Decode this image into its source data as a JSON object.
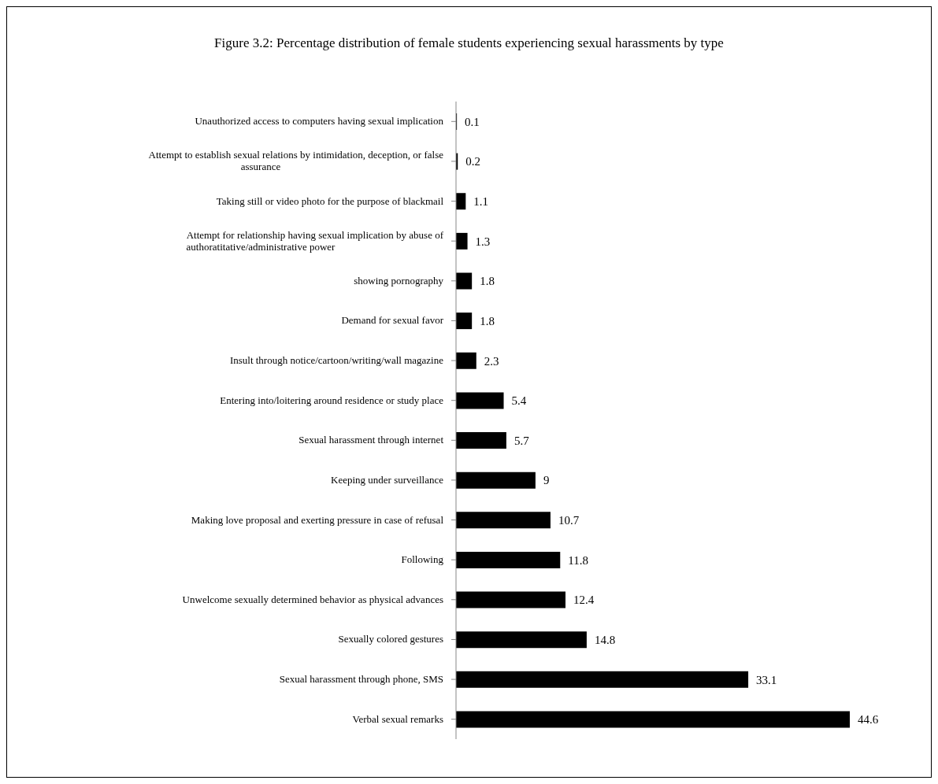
{
  "chart_data": {
    "type": "bar",
    "orientation": "horizontal",
    "title": "Figure 3.2: Percentage distribution of female students  experiencing sexual harassments by type",
    "categories": [
      "Unauthorized access to computers having sexual implication",
      "Attempt to establish sexual relations by intimidation, deception, or false assurance",
      "Taking still or video photo for the purpose of blackmail",
      "Attempt for relationship having sexual implication by abuse of authoratitative/administrative power",
      "showing pornography",
      "Demand for sexual favor",
      "Insult through notice/cartoon/writing/wall magazine",
      "Entering into/loitering around residence or study place",
      "Sexual harassment through internet",
      "Keeping under surveillance",
      "Making love proposal and exerting pressure in case of refusal",
      "Following",
      "Unwelcome sexually determined behavior as physical advances",
      "Sexually colored gestures",
      "Sexual harassment through phone, SMS",
      "Verbal sexual remarks"
    ],
    "values": [
      0.1,
      0.2,
      1.1,
      1.3,
      1.8,
      1.8,
      2.3,
      5.4,
      5.7,
      9,
      10.7,
      11.8,
      12.4,
      14.8,
      33.1,
      44.6
    ],
    "color": "#000000",
    "data_labels": true
  }
}
